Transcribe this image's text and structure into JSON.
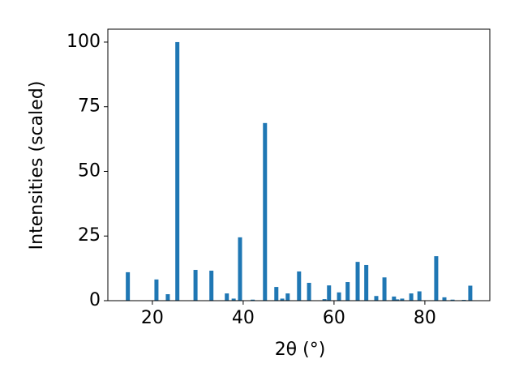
{
  "chart_data": {
    "type": "bar",
    "x_label": "2θ (°)",
    "y_label": "Intensities (scaled)",
    "x": [
      14.6,
      20.9,
      23.4,
      25.5,
      29.5,
      33.0,
      36.4,
      37.9,
      39.3,
      42.1,
      44.8,
      47.3,
      48.6,
      49.8,
      52.3,
      54.5,
      57.9,
      58.9,
      61.1,
      63.0,
      65.2,
      67.1,
      69.3,
      71.1,
      73.2,
      73.9,
      75.0,
      77.0,
      78.8,
      82.5,
      84.3,
      86.1,
      88.6,
      90.0
    ],
    "values": [
      11,
      8.2,
      2.5,
      100,
      11.9,
      11.6,
      2.8,
      0.8,
      24.5,
      0.4,
      68.7,
      5.3,
      0.8,
      2.8,
      11.3,
      6.9,
      0.6,
      5.9,
      3.2,
      7.2,
      15,
      13.8,
      1.8,
      9.0,
      1.6,
      0.5,
      0.8,
      2.8,
      3.6,
      17.2,
      1.3,
      0.4,
      0.3,
      5.8
    ],
    "color": "#1f77b4",
    "xlim": [
      10.2,
      94.3
    ],
    "xticks": [
      20,
      40,
      60,
      80
    ],
    "ylim": [
      0,
      105
    ],
    "yticks": [
      0,
      25,
      50,
      75,
      100
    ]
  }
}
